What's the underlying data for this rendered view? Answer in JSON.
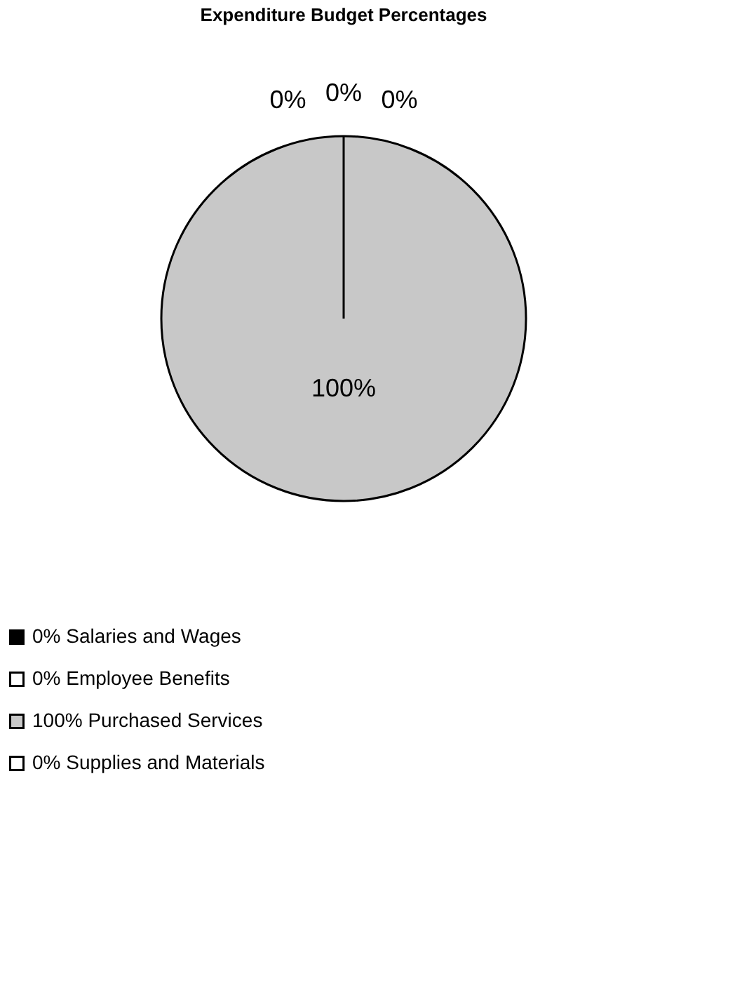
{
  "chart_data": {
    "type": "pie",
    "title": "Expenditure Budget Percentages",
    "categories": [
      "0% Salaries and Wages",
      "0% Employee Benefits",
      "100% Purchased Services",
      "0% Supplies and Materials"
    ],
    "values": [
      0,
      0,
      100,
      0
    ],
    "colors": [
      "#000000",
      "#ffffff",
      "#c8c8c8",
      "#ffffff"
    ],
    "value_labels": [
      "0%",
      "0%",
      "100%",
      "0%"
    ],
    "legend": "bottom"
  }
}
